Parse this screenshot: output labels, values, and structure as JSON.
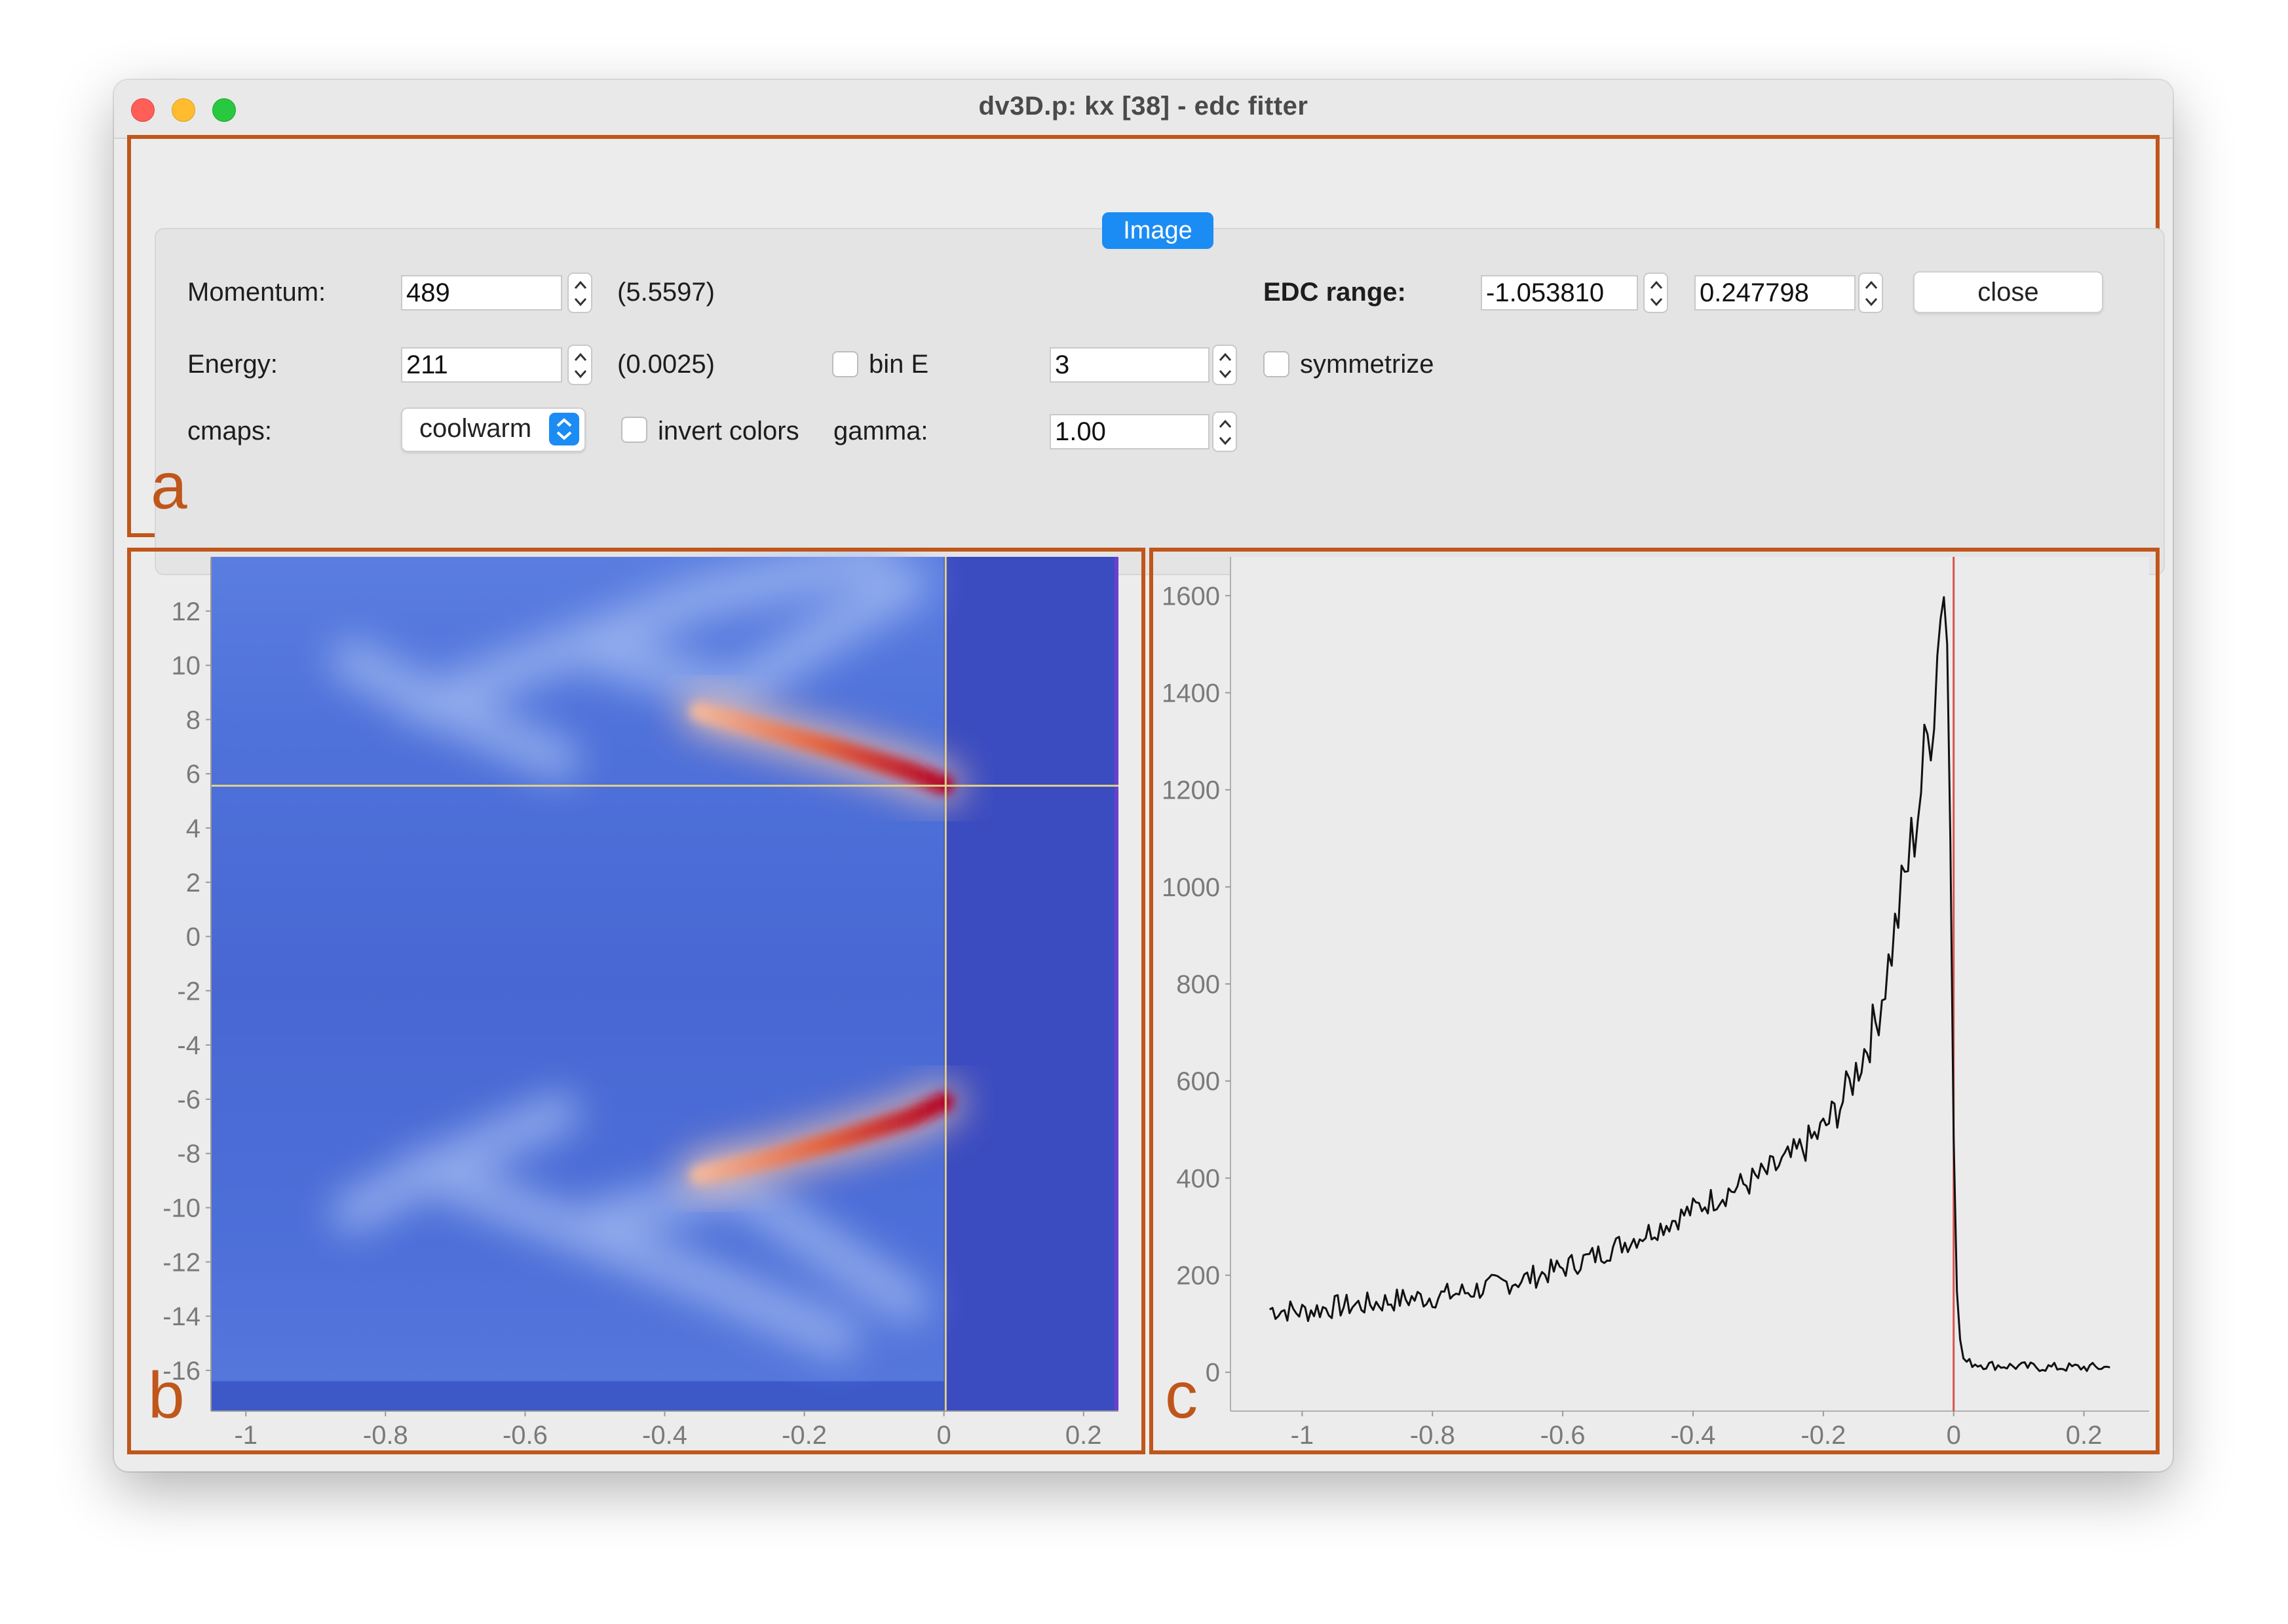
{
  "window": {
    "title": "dv3D.p: kx [38] - edc fitter"
  },
  "tab": {
    "label": "Image"
  },
  "panel_labels": {
    "a": "a",
    "b": "b",
    "c": "c"
  },
  "controls": {
    "momentum": {
      "label": "Momentum:",
      "value": "489",
      "readout": "(5.5597)"
    },
    "energy": {
      "label": "Energy:",
      "value": "211",
      "readout": "(0.0025)"
    },
    "cmaps": {
      "label": "cmaps:",
      "selected": "coolwarm"
    },
    "invert_colors": {
      "label": "invert colors",
      "checked": false
    },
    "bin_e": {
      "label": "bin E",
      "checked": false,
      "value": "3"
    },
    "symmetrize": {
      "label": "symmetrize",
      "checked": false
    },
    "gamma": {
      "label": "gamma:",
      "value": "1.00"
    },
    "edc_range": {
      "label": "EDC range:",
      "min": "-1.053810",
      "max": "0.247798"
    },
    "close_button": "close"
  },
  "colors": {
    "accent": "#1b8cf3",
    "panel_outline": "#c0561a",
    "map_low": "#3a4cc0",
    "map_high": "#b40426",
    "cursor_line": "#e0d08a",
    "fermi_line": "#d9534f",
    "edc_curve": "#111111"
  },
  "chart_data": [
    {
      "type": "heatmap",
      "colormap": "coolwarm",
      "x_ticks": [
        "-1",
        "-0.8",
        "-0.6",
        "-0.4",
        "-0.2",
        "0",
        "0.2"
      ],
      "y_ticks": [
        "12",
        "10",
        "8",
        "6",
        "4",
        "2",
        "0",
        "-2",
        "-4",
        "-6",
        "-8",
        "-10",
        "-12",
        "-14",
        "-16"
      ],
      "xlim": [
        -1.05,
        0.25
      ],
      "ylim": [
        -17.5,
        14.0
      ],
      "cursor": {
        "energy": 0.0025,
        "momentum": 5.5597
      },
      "features": [
        {
          "name": "upper band",
          "energy": [
            -0.35,
            -0.25,
            -0.15,
            -0.05,
            0.0
          ],
          "momentum": [
            8.3,
            7.6,
            6.9,
            6.1,
            5.6
          ]
        },
        {
          "name": "lower band",
          "energy": [
            -0.35,
            -0.25,
            -0.15,
            -0.05,
            0.0
          ],
          "momentum": [
            -8.8,
            -8.2,
            -7.5,
            -6.7,
            -6.1
          ]
        }
      ]
    },
    {
      "type": "line",
      "x_ticks": [
        "-1",
        "-0.8",
        "-0.6",
        "-0.4",
        "-0.2",
        "0",
        "0.2"
      ],
      "y_ticks": [
        "1600",
        "1400",
        "1200",
        "1000",
        "800",
        "600",
        "400",
        "200",
        "0"
      ],
      "xlim": [
        -1.11,
        0.3
      ],
      "ylim": [
        -80,
        1680
      ],
      "fermi_level": 0.0,
      "series": [
        {
          "x": [
            -1.05,
            -1.0,
            -0.95,
            -0.9,
            -0.85,
            -0.8,
            -0.75,
            -0.7,
            -0.65,
            -0.6,
            -0.55,
            -0.5,
            -0.45,
            -0.4,
            -0.35,
            -0.3,
            -0.25,
            -0.2,
            -0.17,
            -0.15,
            -0.12,
            -0.1,
            -0.08,
            -0.06,
            -0.04,
            -0.03,
            -0.02,
            -0.015,
            -0.01,
            -0.005,
            0.0,
            0.005,
            0.01,
            0.015,
            0.02,
            0.05,
            0.1,
            0.15,
            0.2,
            0.24
          ],
          "y": [
            130,
            125,
            135,
            140,
            150,
            155,
            165,
            180,
            195,
            215,
            240,
            270,
            300,
            335,
            370,
            400,
            440,
            500,
            560,
            620,
            720,
            840,
            980,
            1120,
            1300,
            1400,
            1560,
            1600,
            1500,
            1100,
            500,
            180,
            60,
            30,
            20,
            15,
            12,
            10,
            10,
            10
          ]
        }
      ]
    }
  ]
}
